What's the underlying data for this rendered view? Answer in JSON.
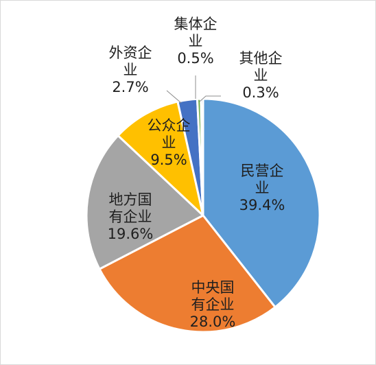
{
  "chart_data": {
    "type": "pie",
    "title": "",
    "slices": [
      {
        "lines": [
          "民营企",
          "业",
          "39.4%"
        ],
        "value": 39.4,
        "color": "#5b9bd5",
        "text_color": "#1f1f1f"
      },
      {
        "lines": [
          "中央国",
          "有企业",
          "28.0%"
        ],
        "value": 28.0,
        "color": "#ed7d31",
        "text_color": "#ffffff"
      },
      {
        "lines": [
          "地方国",
          "有企业",
          "19.6%"
        ],
        "value": 19.6,
        "color": "#a5a5a5",
        "text_color": "#1f1f1f"
      },
      {
        "lines": [
          "公众企",
          "业",
          "9.5%"
        ],
        "value": 9.5,
        "color": "#ffc000",
        "text_color": "#1f1f1f"
      },
      {
        "lines": [
          "外资企",
          "业",
          "2.7%"
        ],
        "value": 2.7,
        "color": "#4472c4",
        "text_color": "#1f1f1f"
      },
      {
        "lines": [
          "集体企",
          "业",
          "0.5%"
        ],
        "value": 0.5,
        "color": "#70ad47",
        "text_color": "#1f1f1f"
      },
      {
        "lines": [
          "其他企",
          "业",
          "0.3%"
        ],
        "value": 0.3,
        "color": "#264478",
        "text_color": "#1f1f1f"
      }
    ],
    "legend": "none",
    "start_angle": "12 o'clock, clockwise"
  }
}
